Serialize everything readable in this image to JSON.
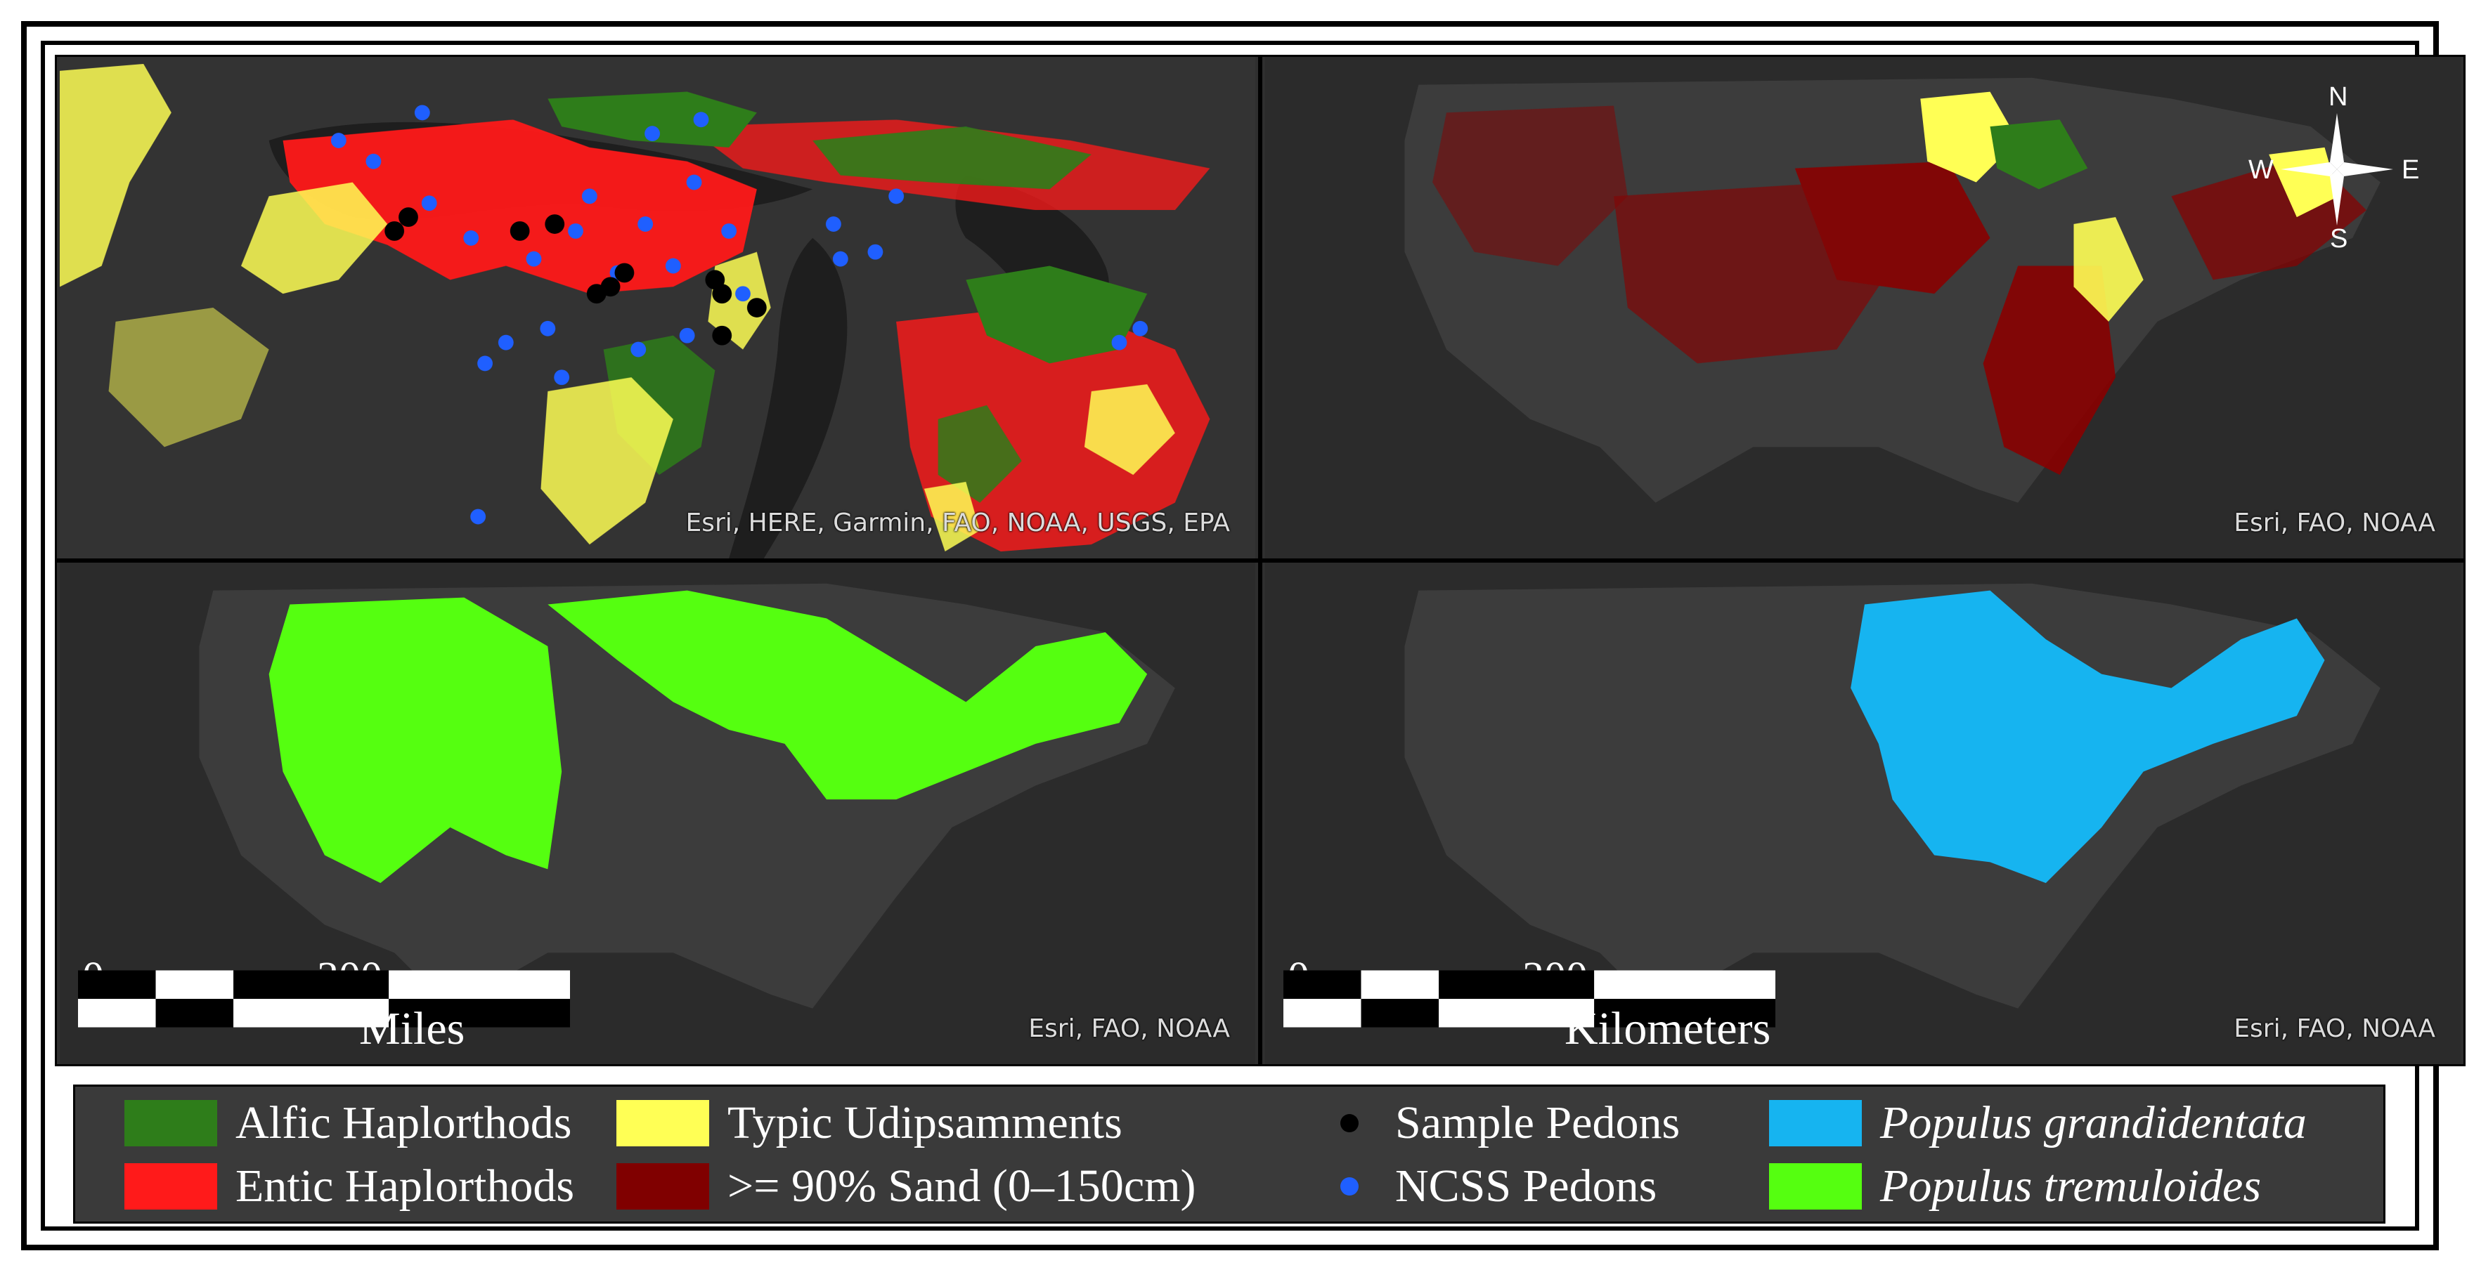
{
  "panels": {
    "top_left": {
      "attribution": "Esri, HERE, Garmin, FAO, NOAA, USGS, EPA"
    },
    "top_right": {
      "attribution": "Esri, FAO, NOAA"
    },
    "bottom_left": {
      "attribution": "Esri, FAO, NOAA"
    },
    "bottom_right": {
      "attribution": "Esri, FAO, NOAA"
    }
  },
  "compass": {
    "north": "N",
    "south": "S",
    "east": "E",
    "west": "W"
  },
  "scalebars": {
    "miles": {
      "start": "0",
      "end": "300",
      "unit": "Miles"
    },
    "kilometers": {
      "start": "0",
      "end": "300",
      "unit": "Kilometers"
    }
  },
  "legend": {
    "alfic": {
      "label": "Alfic Haplorthods",
      "color": "#2e7d1a"
    },
    "entic": {
      "label": "Entic Haplorthods",
      "color": "#ff1a1a"
    },
    "typic": {
      "label": "Typic Udipsamments",
      "color": "#ffff55"
    },
    "sand": {
      "label": ">= 90% Sand (0–150cm)",
      "color": "#800000"
    },
    "sample": {
      "label": "Sample Pedons",
      "color": "#000000"
    },
    "ncss": {
      "label": "NCSS Pedons",
      "color": "#1f5fff"
    },
    "grandidentata": {
      "label": "Populus grandidentata",
      "color": "#16b4f0"
    },
    "tremuloides": {
      "label": "Populus tremuloides",
      "color": "#55ff10"
    }
  }
}
